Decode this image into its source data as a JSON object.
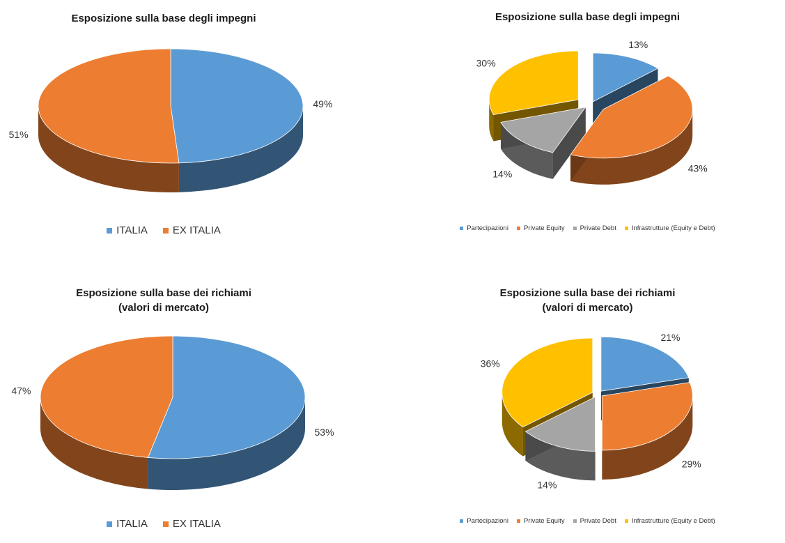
{
  "colors": {
    "ITALIA": "#5b9bd5",
    "EX ITALIA": "#ed7d31",
    "Partecipazioni": "#5b9bd5",
    "Private Equity": "#ed7d31",
    "Private Debt": "#a5a5a5",
    "Infrastrutture (Equity e Debt)": "#ffc000"
  },
  "chart_data": [
    {
      "type": "pie",
      "title": "Esposizione sulla base degli impegni",
      "legend_position": "bottom",
      "categories": [
        "ITALIA",
        "EX ITALIA"
      ],
      "values": [
        49,
        51
      ],
      "labels": [
        "49%",
        "51%"
      ],
      "legend": [
        "ITALIA",
        "EX ITALIA"
      ]
    },
    {
      "type": "pie",
      "title": "Esposizione sulla base degli impegni",
      "legend_position": "bottom",
      "categories": [
        "Partecipazioni",
        "Private Equity",
        "Private Debt",
        "Infrastrutture (Equity e Debt)"
      ],
      "values": [
        13,
        43,
        14,
        30
      ],
      "labels": [
        "13%",
        "43%",
        "14%",
        "30%"
      ],
      "legend": [
        "Partecipazioni",
        "Private Equity",
        "Private Debt",
        "Infrastrutture (Equity e Debt)"
      ]
    },
    {
      "type": "pie",
      "title": "Esposizione sulla base dei richiami\n(valori di mercato)",
      "legend_position": "bottom",
      "categories": [
        "ITALIA",
        "EX ITALIA"
      ],
      "values": [
        53,
        47
      ],
      "labels": [
        "53%",
        "47%"
      ],
      "legend": [
        "ITALIA",
        "EX ITALIA"
      ]
    },
    {
      "type": "pie",
      "title": "Esposizione sulla base dei richiami\n(valori di mercato)",
      "legend_position": "bottom",
      "categories": [
        "Partecipazioni",
        "Private Equity",
        "Private Debt",
        "Infrastrutture (Equity e Debt)"
      ],
      "values": [
        21,
        29,
        14,
        36
      ],
      "labels": [
        "21%",
        "29%",
        "14%",
        "36%"
      ],
      "legend": [
        "Partecipazioni",
        "Private Equity",
        "Private Debt",
        "Infrastrutture (Equity e Debt)"
      ]
    }
  ]
}
